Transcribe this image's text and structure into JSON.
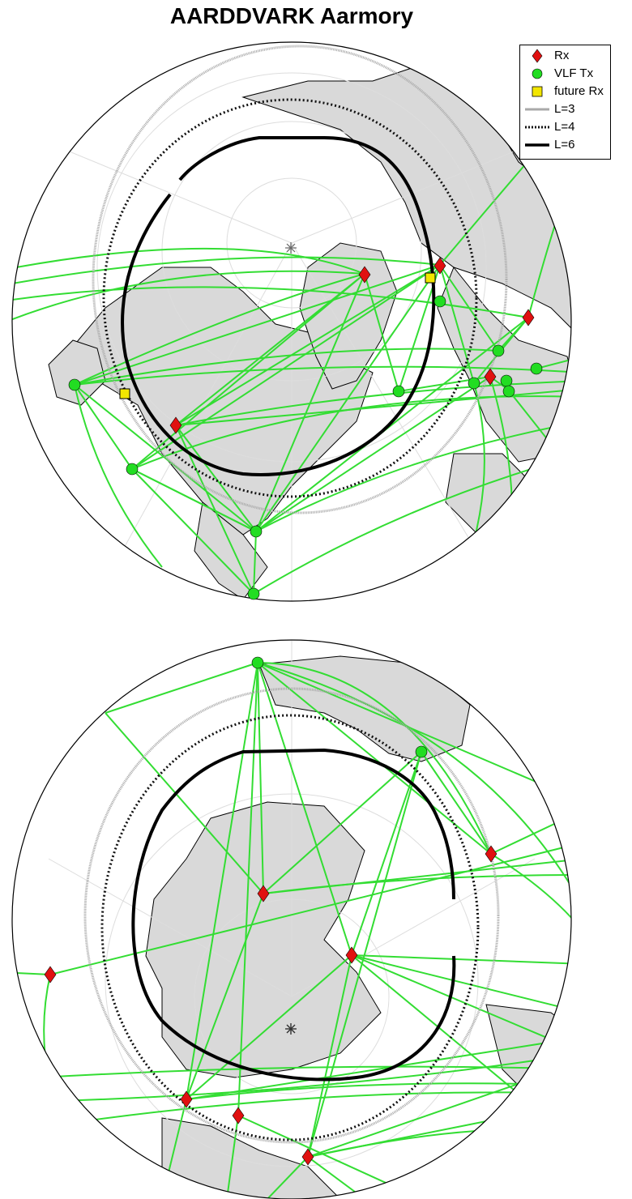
{
  "title": "AARDDVARK Aarmory",
  "colors": {
    "land": "#d9d9d9",
    "ocean": "#ffffff",
    "path": "#33dd33",
    "rx": "#e01010",
    "tx": "#22dd22",
    "future_rx": "#f2e600",
    "l3": "#a9a9a9",
    "l4": "#111111",
    "l6": "#000000"
  },
  "legend": {
    "items": [
      {
        "label": "Rx",
        "symbol": "red-diamond"
      },
      {
        "label": "VLF Tx",
        "symbol": "green-circle"
      },
      {
        "label": "future Rx",
        "symbol": "yellow-square"
      },
      {
        "label": "L=3",
        "symbol": "gray-line"
      },
      {
        "label": "L=4",
        "symbol": "dotted-line"
      },
      {
        "label": "L=6",
        "symbol": "solid-line"
      }
    ]
  },
  "maps": [
    {
      "hemisphere": "north",
      "pole_marker": "asterisk"
    },
    {
      "hemisphere": "south",
      "pole_marker": "asterisk"
    }
  ]
}
